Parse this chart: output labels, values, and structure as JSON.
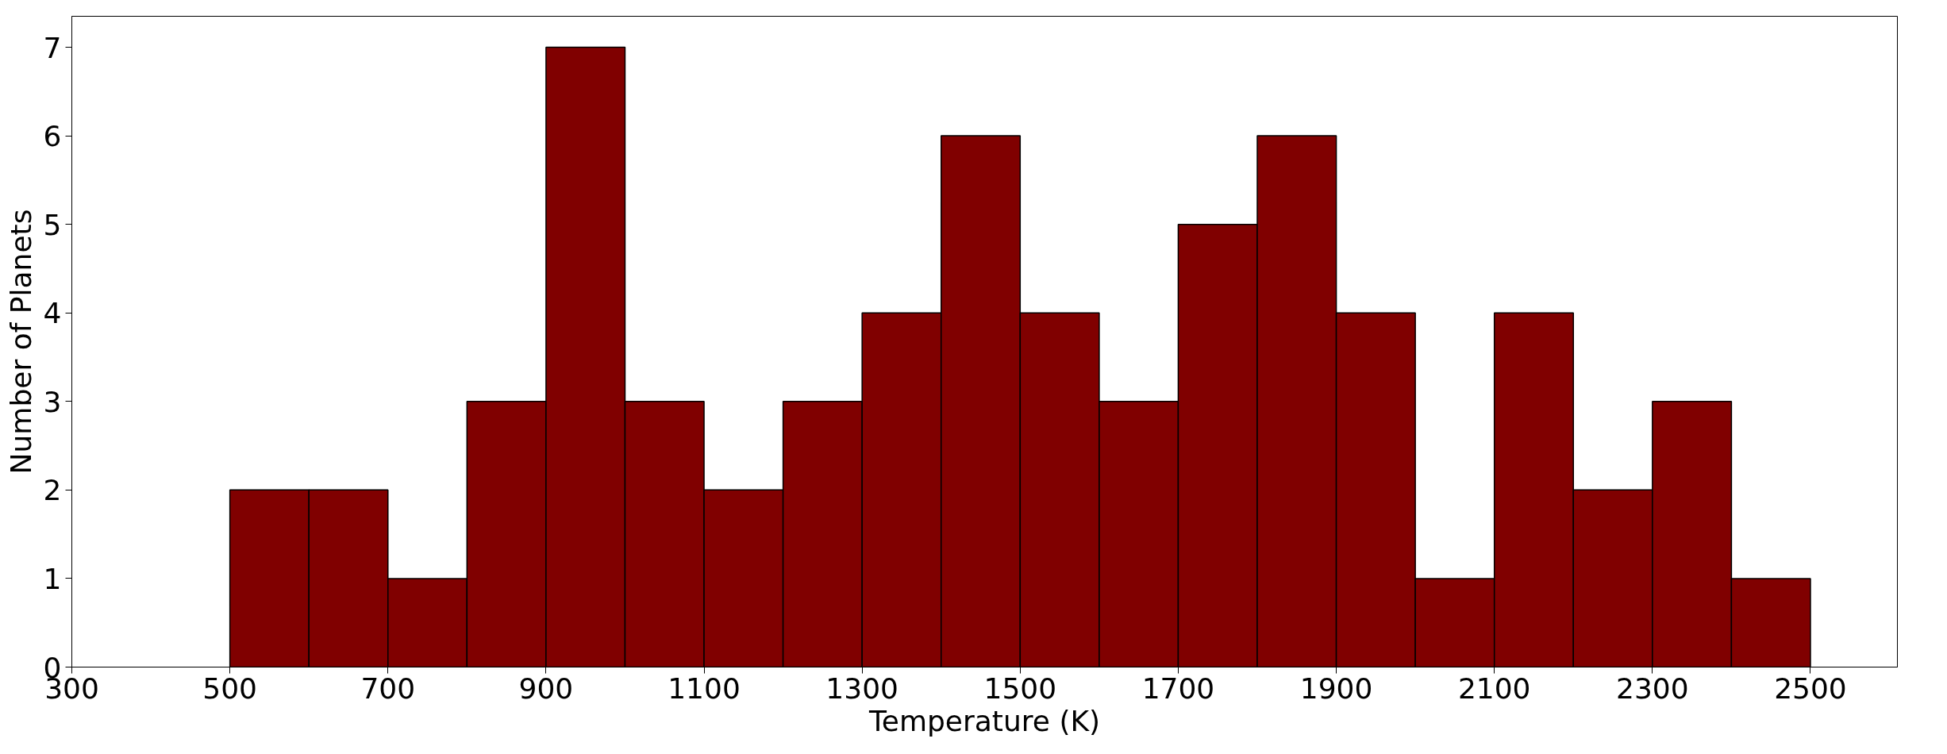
{
  "chart_data": {
    "type": "histogram",
    "xlabel": "Temperature (K)",
    "ylabel": "Number of Planets",
    "bins": [
      500,
      600,
      700,
      800,
      900,
      1000,
      1100,
      1200,
      1300,
      1400,
      1500,
      1600,
      1700,
      1800,
      1900,
      2000,
      2100,
      2200,
      2300,
      2400,
      2500
    ],
    "values": [
      2,
      2,
      1,
      3,
      7,
      3,
      2,
      3,
      4,
      6,
      4,
      3,
      5,
      6,
      4,
      1,
      4,
      2,
      3,
      1
    ],
    "color": "#800000",
    "xlim": [
      300,
      2610
    ],
    "xticks": [
      300,
      500,
      700,
      900,
      1100,
      1300,
      1500,
      1700,
      1900,
      2100,
      2300,
      2500
    ],
    "ylim": [
      0,
      7.35
    ],
    "yticks": [
      0,
      1,
      2,
      3,
      4,
      5,
      6,
      7
    ],
    "grid": false
  }
}
